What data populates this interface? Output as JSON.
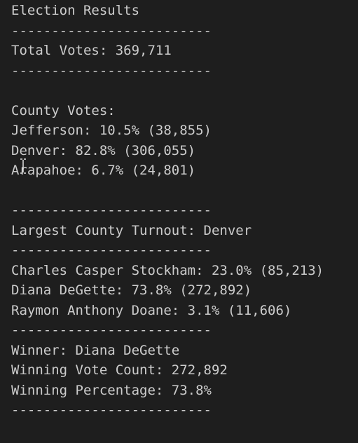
{
  "title": "Election Results",
  "separator": "-------------------------",
  "total_votes": "Total Votes: 369,711",
  "county_heading": "County Votes:",
  "counties": [
    "Jefferson: 10.5% (38,855)",
    "Denver: 82.8% (306,055)",
    "Arapahoe: 6.7% (24,801)"
  ],
  "largest_county": "Largest County Turnout: Denver",
  "candidates": [
    "Charles Casper Stockham: 23.0% (85,213)",
    "Diana DeGette: 73.8% (272,892)",
    "Raymon Anthony Doane: 3.1% (11,606)"
  ],
  "winner": {
    "name": "Winner: Diana DeGette",
    "vote_count": "Winning Vote Count: 272,892",
    "percentage": "Winning Percentage: 73.8%"
  }
}
